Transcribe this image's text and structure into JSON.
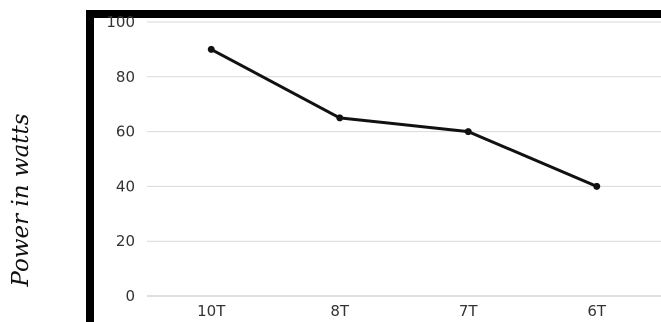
{
  "chart_data": {
    "type": "line",
    "title": "",
    "xlabel": "",
    "ylabel": "Power in watts",
    "categories": [
      "10T",
      "8T",
      "7T",
      "6T"
    ],
    "series": [
      {
        "values": [
          90,
          65,
          60,
          40
        ]
      }
    ],
    "ylim": [
      0,
      100
    ],
    "yticks": [
      0,
      20,
      40,
      60,
      80,
      100
    ],
    "grid": true,
    "legend": "none",
    "colors": {
      "line": "#111111",
      "grid": "#d9d9d9",
      "frame": "#000000",
      "axis": "#bfbfbf"
    }
  }
}
